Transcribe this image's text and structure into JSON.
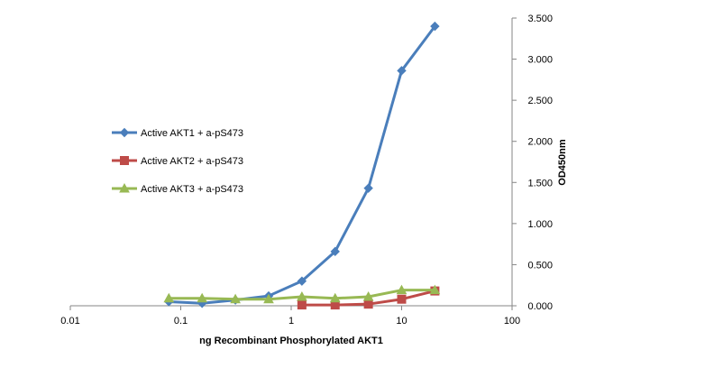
{
  "chart_data": {
    "type": "line",
    "title": "",
    "xlabel": "ng Recombinant  Phosphorylated  AKT1",
    "ylabel": "OD450nm",
    "x_scale": "log",
    "xlim": [
      0.01,
      100
    ],
    "ylim": [
      0,
      3.5
    ],
    "x_ticks": [
      "0.01",
      "0.1",
      "1",
      "10",
      "100"
    ],
    "x_tick_values": [
      0.01,
      0.1,
      1,
      10,
      100
    ],
    "y_ticks": [
      "0.000",
      "0.500",
      "1.000",
      "1.500",
      "2.000",
      "2.500",
      "3.000",
      "3.500"
    ],
    "y_tick_values": [
      0,
      0.5,
      1,
      1.5,
      2,
      2.5,
      3,
      3.5
    ],
    "y_axis_position": "right",
    "grid": false,
    "legend_position": "left",
    "series": [
      {
        "name": "Active AKT1 + a-pS473",
        "color": "#4a7ebb",
        "marker": "diamond",
        "x": [
          0.078,
          0.156,
          0.3125,
          0.625,
          1.25,
          2.5,
          5,
          10,
          20
        ],
        "y": [
          0.05,
          0.03,
          0.07,
          0.12,
          0.3,
          0.66,
          1.43,
          2.86,
          3.4
        ]
      },
      {
        "name": "Active AKT2 + a-pS473",
        "color": "#be4b48",
        "marker": "square",
        "x": [
          1.25,
          2.5,
          5,
          10,
          20
        ],
        "y": [
          0.01,
          0.01,
          0.02,
          0.08,
          0.18
        ]
      },
      {
        "name": "Active AKT3 + a-pS473",
        "color": "#98b954",
        "marker": "triangle",
        "x": [
          0.078,
          0.156,
          0.3125,
          0.625,
          1.25,
          2.5,
          5,
          10,
          20
        ],
        "y": [
          0.09,
          0.09,
          0.08,
          0.08,
          0.11,
          0.09,
          0.11,
          0.19,
          0.19
        ]
      }
    ]
  }
}
